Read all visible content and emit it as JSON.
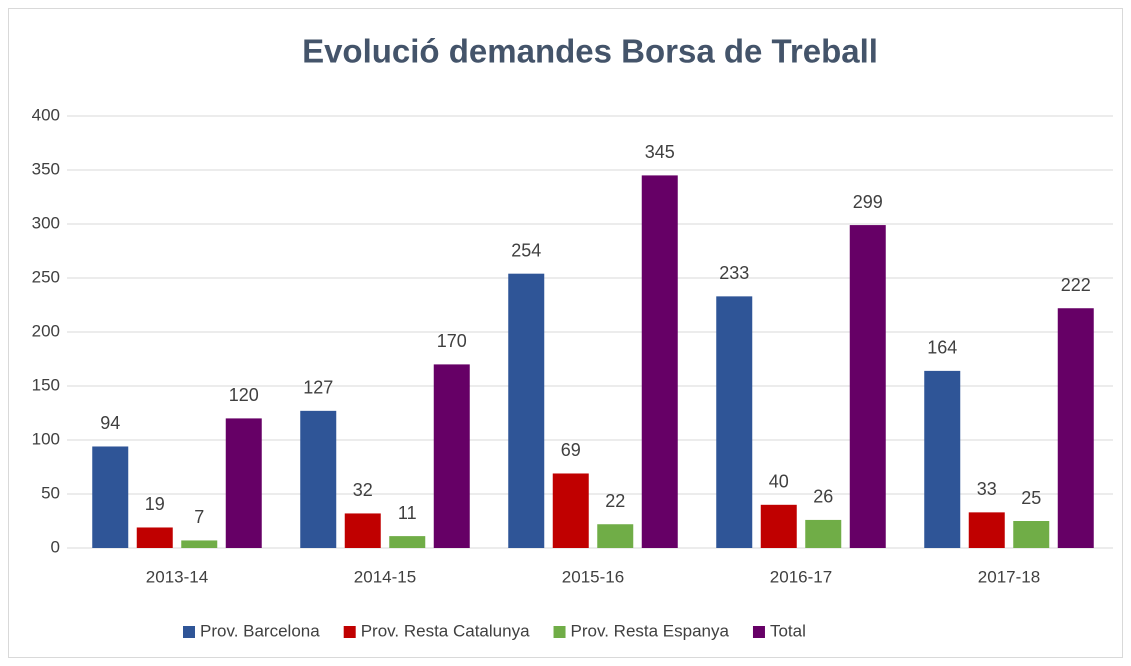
{
  "chart_data": {
    "type": "bar",
    "title": "Evolució demandes Borsa de Treball",
    "categories": [
      "2013-14",
      "2014-15",
      "2015-16",
      "2016-17",
      "2017-18"
    ],
    "series": [
      {
        "name": "Prov. Barcelona",
        "color": "#2f5597",
        "values": [
          94,
          127,
          254,
          233,
          164
        ]
      },
      {
        "name": "Prov. Resta Catalunya",
        "color": "#c00000",
        "values": [
          19,
          32,
          69,
          40,
          33
        ]
      },
      {
        "name": "Prov. Resta Espanya",
        "color": "#70ad47",
        "values": [
          7,
          11,
          22,
          26,
          25
        ]
      },
      {
        "name": "Total",
        "color": "#660066",
        "values": [
          120,
          170,
          345,
          299,
          222
        ]
      }
    ],
    "ylim": [
      0,
      400
    ],
    "yticks": [
      0,
      50,
      100,
      150,
      200,
      250,
      300,
      350,
      400
    ],
    "grid": true,
    "legend": "bottom"
  }
}
